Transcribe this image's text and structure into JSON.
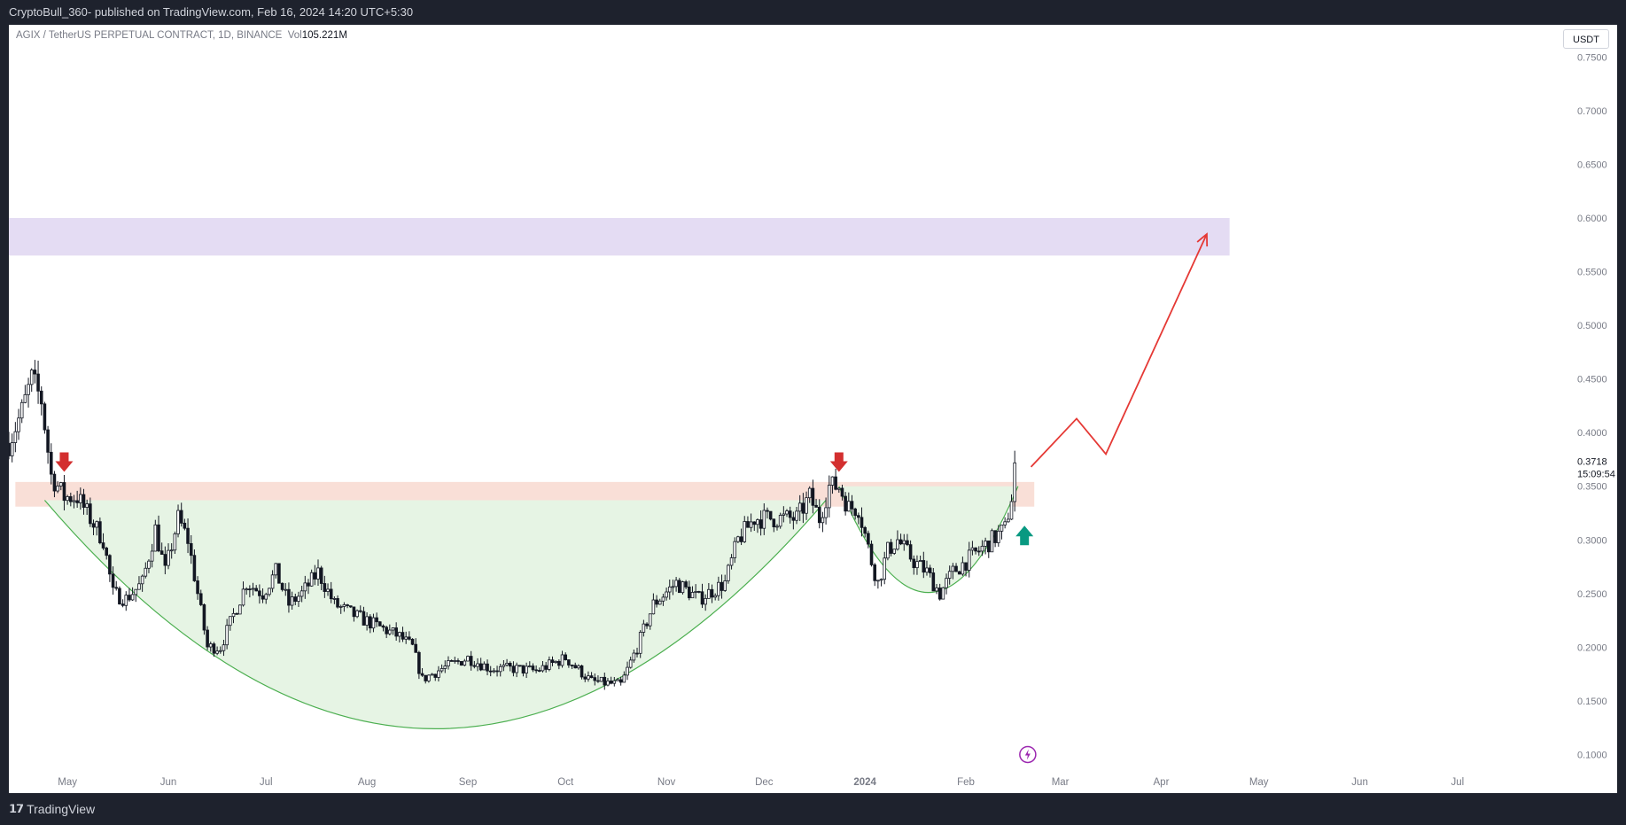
{
  "header": {
    "publish_line": "CryptoBull_360- published on TradingView.com, Feb 16, 2024 14:20 UTC+5:30"
  },
  "symbol": {
    "title": "AGIX / TetherUS PERPETUAL CONTRACT, 1D, BINANCE",
    "vol_label": "Vol",
    "vol_value": "105.221M"
  },
  "currency": "USDT",
  "footer": {
    "brand": "TradingView"
  },
  "colors": {
    "candle_up": "#131722",
    "candle_down": "#131722",
    "resistance_zone": "#f8d9d0",
    "target_zone": "#e4dcf3",
    "cup_fill": "#e6f4e4",
    "cup_line": "#4caf50",
    "arrow_down": "#d32f2f",
    "arrow_up": "#089981",
    "projection": "#e53935",
    "bolt": "#9c27b0"
  },
  "chart_data": {
    "type": "candlestick",
    "title": "AGIX / TetherUS PERPETUAL CONTRACT, 1D, BINANCE",
    "xlabel": "",
    "ylabel": "",
    "ylim": [
      0.088,
      0.78
    ],
    "y_ticks": [
      0.1,
      0.15,
      0.2,
      0.25,
      0.3,
      0.35,
      0.4,
      0.45,
      0.5,
      0.55,
      0.6,
      0.65,
      0.7,
      0.75
    ],
    "x_range": [
      "2023-04-13",
      "2024-07-31"
    ],
    "x_ticks": [
      {
        "label": "May",
        "date": "2023-05-01"
      },
      {
        "label": "Jun",
        "date": "2023-06-01"
      },
      {
        "label": "Jul",
        "date": "2023-07-01"
      },
      {
        "label": "Aug",
        "date": "2023-08-01"
      },
      {
        "label": "Sep",
        "date": "2023-09-01"
      },
      {
        "label": "Oct",
        "date": "2023-10-01"
      },
      {
        "label": "Nov",
        "date": "2023-11-01"
      },
      {
        "label": "Dec",
        "date": "2023-12-01"
      },
      {
        "label": "2024",
        "date": "2024-01-01"
      },
      {
        "label": "Feb",
        "date": "2024-02-01"
      },
      {
        "label": "Mar",
        "date": "2024-03-01"
      },
      {
        "label": "Apr",
        "date": "2024-04-01"
      },
      {
        "label": "May",
        "date": "2024-05-01"
      },
      {
        "label": "Jun",
        "date": "2024-06-01"
      },
      {
        "label": "Jul",
        "date": "2024-07-01"
      }
    ],
    "price_path": [
      [
        "2023-04-13",
        0.39
      ],
      [
        "2023-04-17",
        0.42
      ],
      [
        "2023-04-20",
        0.45
      ],
      [
        "2023-04-23",
        0.43
      ],
      [
        "2023-04-26",
        0.36
      ],
      [
        "2023-04-30",
        0.34
      ],
      [
        "2023-05-04",
        0.34
      ],
      [
        "2023-05-08",
        0.32
      ],
      [
        "2023-05-12",
        0.3
      ],
      [
        "2023-05-15",
        0.25
      ],
      [
        "2023-05-19",
        0.245
      ],
      [
        "2023-05-24",
        0.26
      ],
      [
        "2023-05-28",
        0.31
      ],
      [
        "2023-05-31",
        0.27
      ],
      [
        "2023-06-04",
        0.32
      ],
      [
        "2023-06-07",
        0.3
      ],
      [
        "2023-06-10",
        0.25
      ],
      [
        "2023-06-13",
        0.2
      ],
      [
        "2023-06-17",
        0.2
      ],
      [
        "2023-06-21",
        0.23
      ],
      [
        "2023-06-25",
        0.26
      ],
      [
        "2023-06-30",
        0.25
      ],
      [
        "2023-07-04",
        0.27
      ],
      [
        "2023-07-08",
        0.24
      ],
      [
        "2023-07-12",
        0.25
      ],
      [
        "2023-07-17",
        0.27
      ],
      [
        "2023-07-22",
        0.24
      ],
      [
        "2023-07-28",
        0.23
      ],
      [
        "2023-08-04",
        0.22
      ],
      [
        "2023-08-11",
        0.21
      ],
      [
        "2023-08-15",
        0.2
      ],
      [
        "2023-08-18",
        0.17
      ],
      [
        "2023-08-24",
        0.18
      ],
      [
        "2023-09-01",
        0.19
      ],
      [
        "2023-09-08",
        0.18
      ],
      [
        "2023-09-15",
        0.18
      ],
      [
        "2023-09-22",
        0.178
      ],
      [
        "2023-10-01",
        0.19
      ],
      [
        "2023-10-09",
        0.168
      ],
      [
        "2023-10-18",
        0.165
      ],
      [
        "2023-10-23",
        0.2
      ],
      [
        "2023-10-28",
        0.24
      ],
      [
        "2023-11-04",
        0.26
      ],
      [
        "2023-11-11",
        0.245
      ],
      [
        "2023-11-19",
        0.26
      ],
      [
        "2023-11-23",
        0.3
      ],
      [
        "2023-11-28",
        0.32
      ],
      [
        "2023-12-05",
        0.32
      ],
      [
        "2023-12-11",
        0.32
      ],
      [
        "2023-12-15",
        0.34
      ],
      [
        "2023-12-18",
        0.32
      ],
      [
        "2023-12-21",
        0.35
      ],
      [
        "2023-12-24",
        0.35
      ],
      [
        "2023-12-27",
        0.33
      ],
      [
        "2023-12-30",
        0.33
      ],
      [
        "2024-01-03",
        0.28
      ],
      [
        "2024-01-05",
        0.26
      ],
      [
        "2024-01-08",
        0.29
      ],
      [
        "2024-01-11",
        0.3
      ],
      [
        "2024-01-16",
        0.28
      ],
      [
        "2024-01-20",
        0.27
      ],
      [
        "2024-01-24",
        0.25
      ],
      [
        "2024-01-28",
        0.27
      ],
      [
        "2024-02-01",
        0.28
      ],
      [
        "2024-02-05",
        0.29
      ],
      [
        "2024-02-09",
        0.3
      ],
      [
        "2024-02-13",
        0.31
      ],
      [
        "2024-02-15",
        0.34
      ],
      [
        "2024-02-16",
        0.3718
      ]
    ],
    "last_price_label": "0.3718",
    "countdown_label": "15:09:54",
    "resistance_zone": {
      "from": "2023-04-15",
      "to": "2024-02-22",
      "low": 0.331,
      "high": 0.354
    },
    "target_zone": {
      "from": "2023-04-13",
      "to": "2024-04-22",
      "low": 0.565,
      "high": 0.6
    },
    "cup": {
      "from": "2023-04-24",
      "to": "2023-12-20",
      "rim": 0.337,
      "bottom": 0.124
    },
    "handle": {
      "from": "2023-12-24",
      "to": "2024-02-17",
      "rim": 0.35,
      "bottom": 0.251
    },
    "down_arrows": [
      {
        "date": "2023-04-30",
        "price": 0.365
      },
      {
        "date": "2023-12-24",
        "price": 0.365
      }
    ],
    "up_arrow": {
      "date": "2024-02-19",
      "price": 0.305
    },
    "projection_path": [
      [
        "2024-02-21",
        0.368
      ],
      [
        "2024-03-06",
        0.413
      ],
      [
        "2024-03-15",
        0.38
      ],
      [
        "2024-04-15",
        0.585
      ]
    ],
    "bolt_marker": {
      "date": "2024-02-20",
      "price": 0.1
    }
  }
}
